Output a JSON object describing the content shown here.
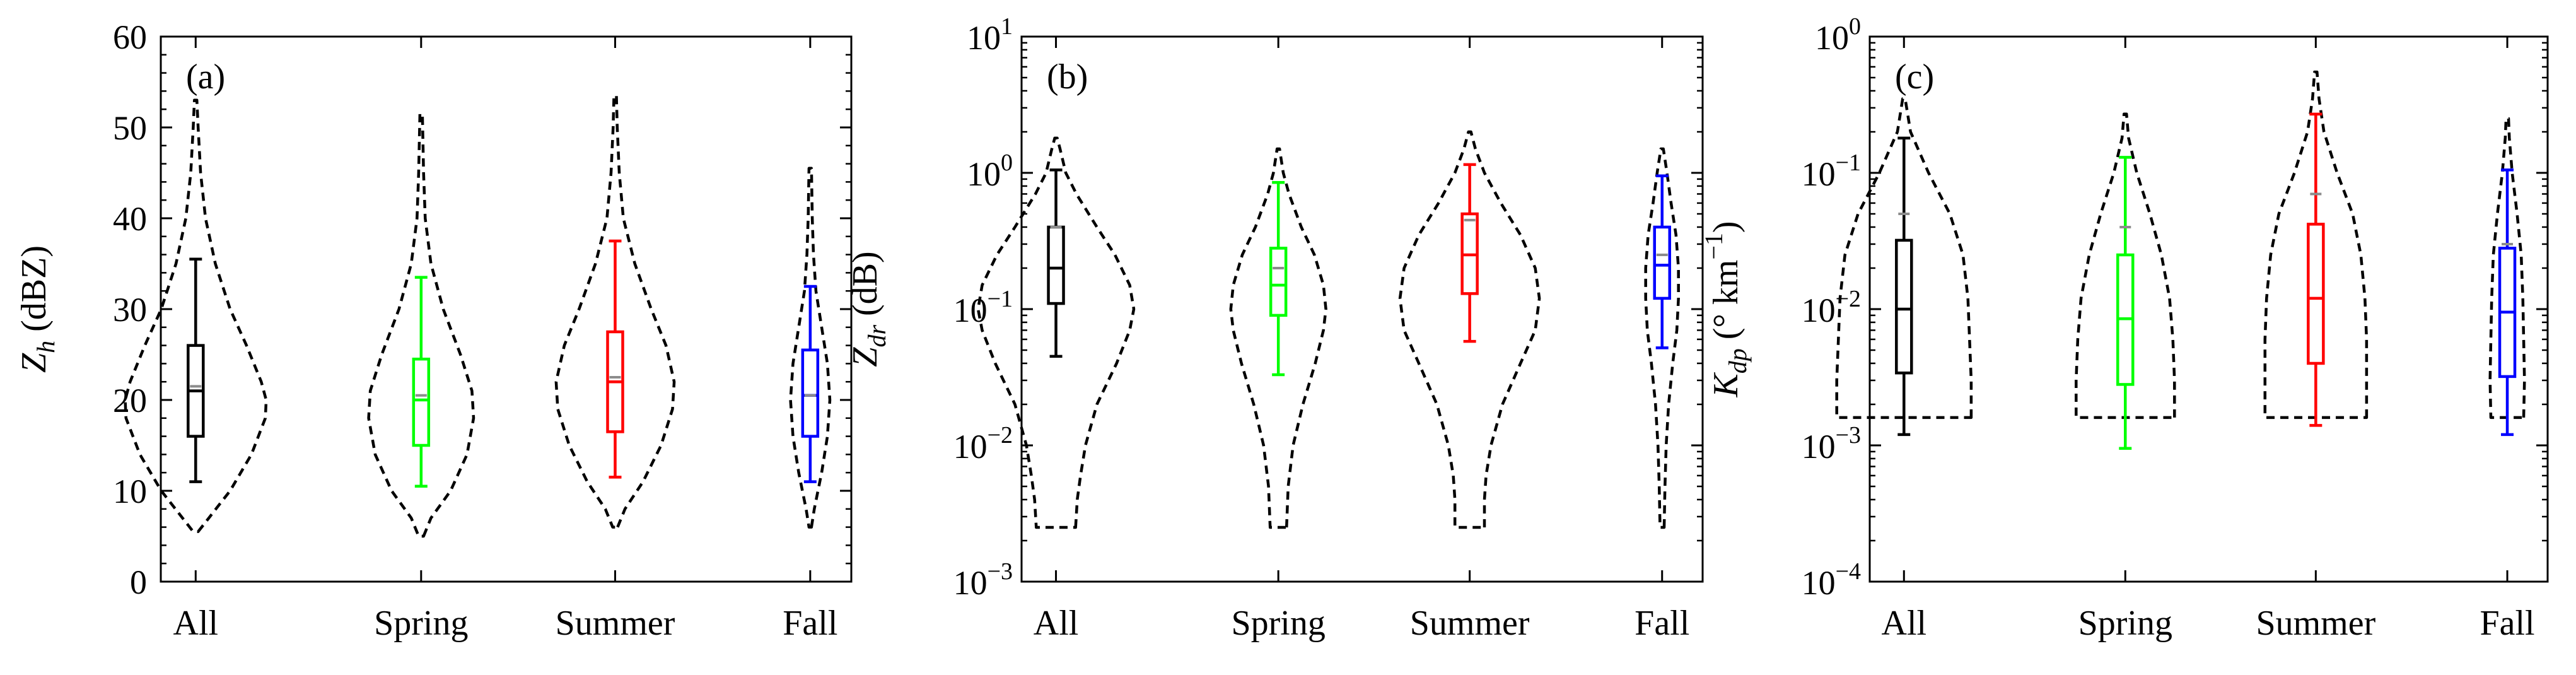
{
  "chart_data": [
    {
      "panel_label": "(a)",
      "type": "violin-box",
      "yscale": "linear",
      "ylim": [
        0,
        60
      ],
      "yticks": [
        {
          "value": 0,
          "label": "0"
        },
        {
          "value": 10,
          "label": "10"
        },
        {
          "value": 20,
          "label": "20"
        },
        {
          "value": 30,
          "label": "30"
        },
        {
          "value": 40,
          "label": "40"
        },
        {
          "value": 50,
          "label": "50"
        },
        {
          "value": 60,
          "label": "60"
        }
      ],
      "ylabel": {
        "base": "Z",
        "sub": "h",
        "unit": " (dBZ)",
        "sup": "",
        "after": ""
      },
      "categories": [
        "All",
        "Spring",
        "Summer",
        "Fall"
      ],
      "series": [
        {
          "name": "All",
          "color": "#000000",
          "box": {
            "whisker_low": 11,
            "q1": 16,
            "median": 21,
            "q3": 26,
            "whisker_high": 35.5
          },
          "mean": 21.5,
          "violin": [
            [
              5.5,
              0.03
            ],
            [
              7,
              0.16
            ],
            [
              10,
              0.42
            ],
            [
              14,
              0.68
            ],
            [
              18,
              0.85
            ],
            [
              20,
              0.86
            ],
            [
              22,
              0.8
            ],
            [
              26,
              0.62
            ],
            [
              30,
              0.42
            ],
            [
              35,
              0.24
            ],
            [
              40,
              0.12
            ],
            [
              45,
              0.06
            ],
            [
              50,
              0.03
            ],
            [
              53,
              0.015
            ]
          ]
        },
        {
          "name": "Spring",
          "color": "#00ff00",
          "box": {
            "whisker_low": 10.5,
            "q1": 15,
            "median": 20,
            "q3": 24.5,
            "whisker_high": 33.5
          },
          "mean": 20.5,
          "violin": [
            [
              5,
              0.03
            ],
            [
              7,
              0.12
            ],
            [
              10,
              0.36
            ],
            [
              14,
              0.56
            ],
            [
              18,
              0.64
            ],
            [
              21,
              0.62
            ],
            [
              25,
              0.48
            ],
            [
              30,
              0.27
            ],
            [
              35,
              0.12
            ],
            [
              40,
              0.05
            ],
            [
              45,
              0.03
            ],
            [
              51.5,
              0.015
            ]
          ]
        },
        {
          "name": "Summer",
          "color": "#ff0000",
          "box": {
            "whisker_low": 11.5,
            "q1": 16.5,
            "median": 22,
            "q3": 27.5,
            "whisker_high": 37.5
          },
          "mean": 22.5,
          "violin": [
            [
              6,
              0.03
            ],
            [
              8,
              0.12
            ],
            [
              11,
              0.34
            ],
            [
              15,
              0.56
            ],
            [
              19,
              0.7
            ],
            [
              22,
              0.72
            ],
            [
              26,
              0.62
            ],
            [
              30,
              0.44
            ],
            [
              35,
              0.24
            ],
            [
              40,
              0.1
            ],
            [
              45,
              0.05
            ],
            [
              50,
              0.025
            ],
            [
              53.5,
              0.015
            ]
          ]
        },
        {
          "name": "Fall",
          "color": "#0000ff",
          "box": {
            "whisker_low": 11,
            "q1": 16,
            "median": 20.5,
            "q3": 25.5,
            "whisker_high": 32.5
          },
          "mean": 20.5,
          "violin": [
            [
              6,
              0.015
            ],
            [
              8,
              0.05
            ],
            [
              12,
              0.14
            ],
            [
              16,
              0.21
            ],
            [
              20,
              0.24
            ],
            [
              24,
              0.21
            ],
            [
              28,
              0.14
            ],
            [
              32,
              0.07
            ],
            [
              36,
              0.04
            ],
            [
              40,
              0.025
            ],
            [
              45.5,
              0.015
            ]
          ]
        }
      ]
    },
    {
      "panel_label": "(b)",
      "type": "violin-box",
      "yscale": "log",
      "ylim": [
        0.001,
        10
      ],
      "yticks": [
        {
          "value": 0.001,
          "base": "10",
          "exp": "−3"
        },
        {
          "value": 0.01,
          "base": "10",
          "exp": "−2"
        },
        {
          "value": 0.1,
          "base": "10",
          "exp": "−1"
        },
        {
          "value": 1,
          "base": "10",
          "exp": "0"
        },
        {
          "value": 10,
          "base": "10",
          "exp": "1"
        }
      ],
      "ylabel": {
        "base": "Z",
        "sub": "dr",
        "unit": " (dB)",
        "sup": "",
        "after": ""
      },
      "categories": [
        "All",
        "Spring",
        "Summer",
        "Fall"
      ],
      "series": [
        {
          "name": "All",
          "color": "#000000",
          "box": {
            "whisker_low": 0.045,
            "q1": 0.11,
            "median": 0.2,
            "q3": 0.4,
            "whisker_high": 1.05
          },
          "mean": 0.4,
          "violin": [
            [
              0.0025,
              0.24
            ],
            [
              0.004,
              0.26
            ],
            [
              0.006,
              0.3
            ],
            [
              0.01,
              0.36
            ],
            [
              0.02,
              0.5
            ],
            [
              0.04,
              0.74
            ],
            [
              0.07,
              0.9
            ],
            [
              0.1,
              0.95
            ],
            [
              0.15,
              0.9
            ],
            [
              0.25,
              0.72
            ],
            [
              0.4,
              0.5
            ],
            [
              0.7,
              0.25
            ],
            [
              1.0,
              0.12
            ],
            [
              1.5,
              0.05
            ],
            [
              1.8,
              0.015
            ]
          ]
        },
        {
          "name": "Spring",
          "color": "#00ff00",
          "box": {
            "whisker_low": 0.033,
            "q1": 0.09,
            "median": 0.15,
            "q3": 0.28,
            "whisker_high": 0.85
          },
          "mean": 0.2,
          "violin": [
            [
              0.0025,
              0.1
            ],
            [
              0.005,
              0.12
            ],
            [
              0.01,
              0.18
            ],
            [
              0.02,
              0.3
            ],
            [
              0.04,
              0.45
            ],
            [
              0.07,
              0.55
            ],
            [
              0.1,
              0.58
            ],
            [
              0.15,
              0.55
            ],
            [
              0.25,
              0.44
            ],
            [
              0.4,
              0.28
            ],
            [
              0.7,
              0.13
            ],
            [
              1.0,
              0.06
            ],
            [
              1.5,
              0.015
            ]
          ]
        },
        {
          "name": "Summer",
          "color": "#ff0000",
          "box": {
            "whisker_low": 0.058,
            "q1": 0.13,
            "median": 0.25,
            "q3": 0.5,
            "whisker_high": 1.15
          },
          "mean": 0.45,
          "violin": [
            [
              0.0025,
              0.18
            ],
            [
              0.004,
              0.18
            ],
            [
              0.006,
              0.2
            ],
            [
              0.01,
              0.26
            ],
            [
              0.02,
              0.4
            ],
            [
              0.04,
              0.62
            ],
            [
              0.07,
              0.8
            ],
            [
              0.12,
              0.85
            ],
            [
              0.2,
              0.8
            ],
            [
              0.35,
              0.62
            ],
            [
              0.6,
              0.38
            ],
            [
              1.0,
              0.18
            ],
            [
              1.5,
              0.07
            ],
            [
              2.0,
              0.015
            ]
          ]
        },
        {
          "name": "Fall",
          "color": "#0000ff",
          "box": {
            "whisker_low": 0.052,
            "q1": 0.12,
            "median": 0.21,
            "q3": 0.4,
            "whisker_high": 0.95
          },
          "mean": 0.25,
          "violin": [
            [
              0.0025,
              0.025
            ],
            [
              0.005,
              0.035
            ],
            [
              0.01,
              0.05
            ],
            [
              0.02,
              0.08
            ],
            [
              0.04,
              0.13
            ],
            [
              0.07,
              0.18
            ],
            [
              0.12,
              0.2
            ],
            [
              0.2,
              0.2
            ],
            [
              0.35,
              0.17
            ],
            [
              0.6,
              0.11
            ],
            [
              1.0,
              0.06
            ],
            [
              1.5,
              0.015
            ]
          ]
        }
      ]
    },
    {
      "panel_label": "(c)",
      "type": "violin-box",
      "yscale": "log",
      "ylim": [
        0.0001,
        1
      ],
      "yticks": [
        {
          "value": 0.0001,
          "base": "10",
          "exp": "−4"
        },
        {
          "value": 0.001,
          "base": "10",
          "exp": "−3"
        },
        {
          "value": 0.01,
          "base": "10",
          "exp": "−2"
        },
        {
          "value": 0.1,
          "base": "10",
          "exp": "−1"
        },
        {
          "value": 1,
          "base": "10",
          "exp": "0"
        }
      ],
      "ylabel": {
        "base": "K",
        "sub": "dp",
        "unit": " (° km",
        "sup": "−1",
        "after": ")"
      },
      "categories": [
        "All",
        "Spring",
        "Summer",
        "Fall"
      ],
      "series": [
        {
          "name": "All",
          "color": "#000000",
          "box": {
            "whisker_low": 0.0012,
            "q1": 0.0034,
            "median": 0.01,
            "q3": 0.032,
            "whisker_high": 0.18
          },
          "mean": 0.05,
          "violin": [
            [
              0.0016,
              0.82
            ],
            [
              0.003,
              0.82
            ],
            [
              0.006,
              0.8
            ],
            [
              0.012,
              0.78
            ],
            [
              0.025,
              0.72
            ],
            [
              0.05,
              0.56
            ],
            [
              0.1,
              0.3
            ],
            [
              0.2,
              0.08
            ],
            [
              0.35,
              0.015
            ]
          ]
        },
        {
          "name": "Spring",
          "color": "#00ff00",
          "box": {
            "whisker_low": 0.00095,
            "q1": 0.0028,
            "median": 0.0085,
            "q3": 0.025,
            "whisker_high": 0.13
          },
          "mean": 0.04,
          "violin": [
            [
              0.0016,
              0.6
            ],
            [
              0.003,
              0.6
            ],
            [
              0.006,
              0.58
            ],
            [
              0.012,
              0.54
            ],
            [
              0.025,
              0.44
            ],
            [
              0.05,
              0.3
            ],
            [
              0.1,
              0.14
            ],
            [
              0.18,
              0.04
            ],
            [
              0.27,
              0.015
            ]
          ]
        },
        {
          "name": "Summer",
          "color": "#ff0000",
          "box": {
            "whisker_low": 0.0014,
            "q1": 0.004,
            "median": 0.012,
            "q3": 0.042,
            "whisker_high": 0.27
          },
          "mean": 0.07,
          "violin": [
            [
              0.0016,
              0.62
            ],
            [
              0.003,
              0.62
            ],
            [
              0.006,
              0.62
            ],
            [
              0.012,
              0.6
            ],
            [
              0.025,
              0.55
            ],
            [
              0.05,
              0.45
            ],
            [
              0.1,
              0.26
            ],
            [
              0.2,
              0.1
            ],
            [
              0.35,
              0.04
            ],
            [
              0.55,
              0.015
            ]
          ]
        },
        {
          "name": "Fall",
          "color": "#0000ff",
          "box": {
            "whisker_low": 0.0012,
            "q1": 0.0032,
            "median": 0.0095,
            "q3": 0.028,
            "whisker_high": 0.105
          },
          "mean": 0.03,
          "violin": [
            [
              0.0016,
              0.2
            ],
            [
              0.003,
              0.21
            ],
            [
              0.006,
              0.2
            ],
            [
              0.012,
              0.19
            ],
            [
              0.025,
              0.17
            ],
            [
              0.05,
              0.12
            ],
            [
              0.1,
              0.06
            ],
            [
              0.18,
              0.025
            ],
            [
              0.25,
              0.015
            ]
          ]
        }
      ]
    }
  ]
}
